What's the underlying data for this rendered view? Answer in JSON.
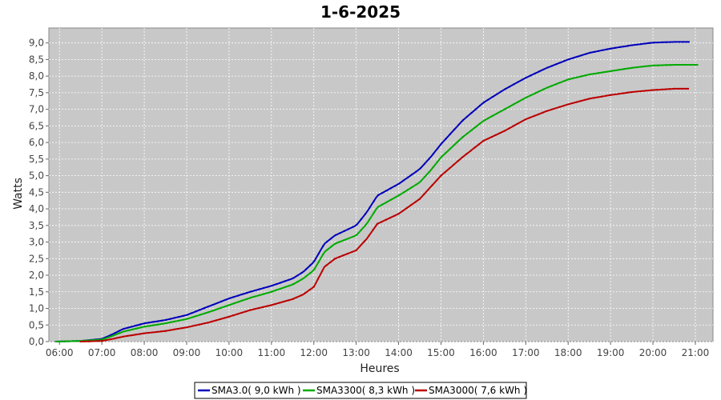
{
  "chart_data": {
    "type": "line",
    "title": "1-6-2025",
    "xlabel": "Heures",
    "ylabel": "Watts",
    "x_ticks": [
      "06:00",
      "07:00",
      "08:00",
      "09:00",
      "10:00",
      "11:00",
      "12:00",
      "13:00",
      "14:00",
      "15:00",
      "16:00",
      "17:00",
      "18:00",
      "19:00",
      "20:00",
      "21:00"
    ],
    "y_ticks": [
      "0,0",
      "0,5",
      "1,0",
      "1,5",
      "2,0",
      "2,5",
      "3,0",
      "3,5",
      "4,0",
      "4,5",
      "5,0",
      "5,5",
      "6,0",
      "6,5",
      "7,0",
      "7,5",
      "8,0",
      "8,5",
      "9,0"
    ],
    "xlim": [
      "05:45",
      "21:25"
    ],
    "ylim": [
      0,
      9.45
    ],
    "grid": true,
    "legend_position": "bottom-center",
    "background_color": "#c8c8c8",
    "grid_color": "#ffffff",
    "x": [
      "05:55",
      "06:30",
      "07:00",
      "07:15",
      "07:30",
      "08:00",
      "08:30",
      "09:00",
      "09:30",
      "10:00",
      "10:30",
      "11:00",
      "11:30",
      "11:45",
      "12:00",
      "12:15",
      "12:30",
      "13:00",
      "13:15",
      "13:30",
      "14:00",
      "14:30",
      "14:45",
      "15:00",
      "15:30",
      "16:00",
      "16:30",
      "17:00",
      "17:30",
      "18:00",
      "18:30",
      "19:00",
      "19:30",
      "20:00",
      "20:30",
      "20:52",
      "21:05"
    ],
    "series": [
      {
        "name": "SMA3.0( 9,0 kWh )",
        "color": "#0000bb",
        "x_end": "20:52",
        "values": [
          0.0,
          0.02,
          0.08,
          0.22,
          0.38,
          0.55,
          0.65,
          0.8,
          1.05,
          1.3,
          1.5,
          1.68,
          1.9,
          2.1,
          2.4,
          2.95,
          3.2,
          3.5,
          3.9,
          4.4,
          4.75,
          5.2,
          5.55,
          5.95,
          6.65,
          7.2,
          7.6,
          7.95,
          8.25,
          8.5,
          8.7,
          8.83,
          8.93,
          9.01,
          9.03,
          9.03,
          null
        ]
      },
      {
        "name": "SMA3300( 8,3 kWh )",
        "color": "#00aa00",
        "x_end": "21:05",
        "values": [
          0.0,
          0.02,
          0.06,
          0.17,
          0.3,
          0.45,
          0.55,
          0.68,
          0.88,
          1.1,
          1.32,
          1.5,
          1.72,
          1.9,
          2.15,
          2.7,
          2.95,
          3.2,
          3.55,
          4.05,
          4.4,
          4.8,
          5.15,
          5.55,
          6.15,
          6.65,
          7.0,
          7.35,
          7.65,
          7.9,
          8.05,
          8.15,
          8.25,
          8.32,
          8.34,
          8.34,
          8.34
        ]
      },
      {
        "name": "SMA3000( 7,6 kWh )",
        "color": "#bb0000",
        "x_end": "20:52",
        "values": [
          null,
          0.0,
          0.02,
          0.08,
          0.15,
          0.25,
          0.32,
          0.43,
          0.57,
          0.75,
          0.95,
          1.1,
          1.28,
          1.42,
          1.65,
          2.25,
          2.5,
          2.75,
          3.1,
          3.55,
          3.85,
          4.3,
          4.65,
          5.0,
          5.55,
          6.05,
          6.35,
          6.7,
          6.95,
          7.15,
          7.32,
          7.43,
          7.52,
          7.58,
          7.62,
          7.62,
          null
        ]
      }
    ]
  }
}
